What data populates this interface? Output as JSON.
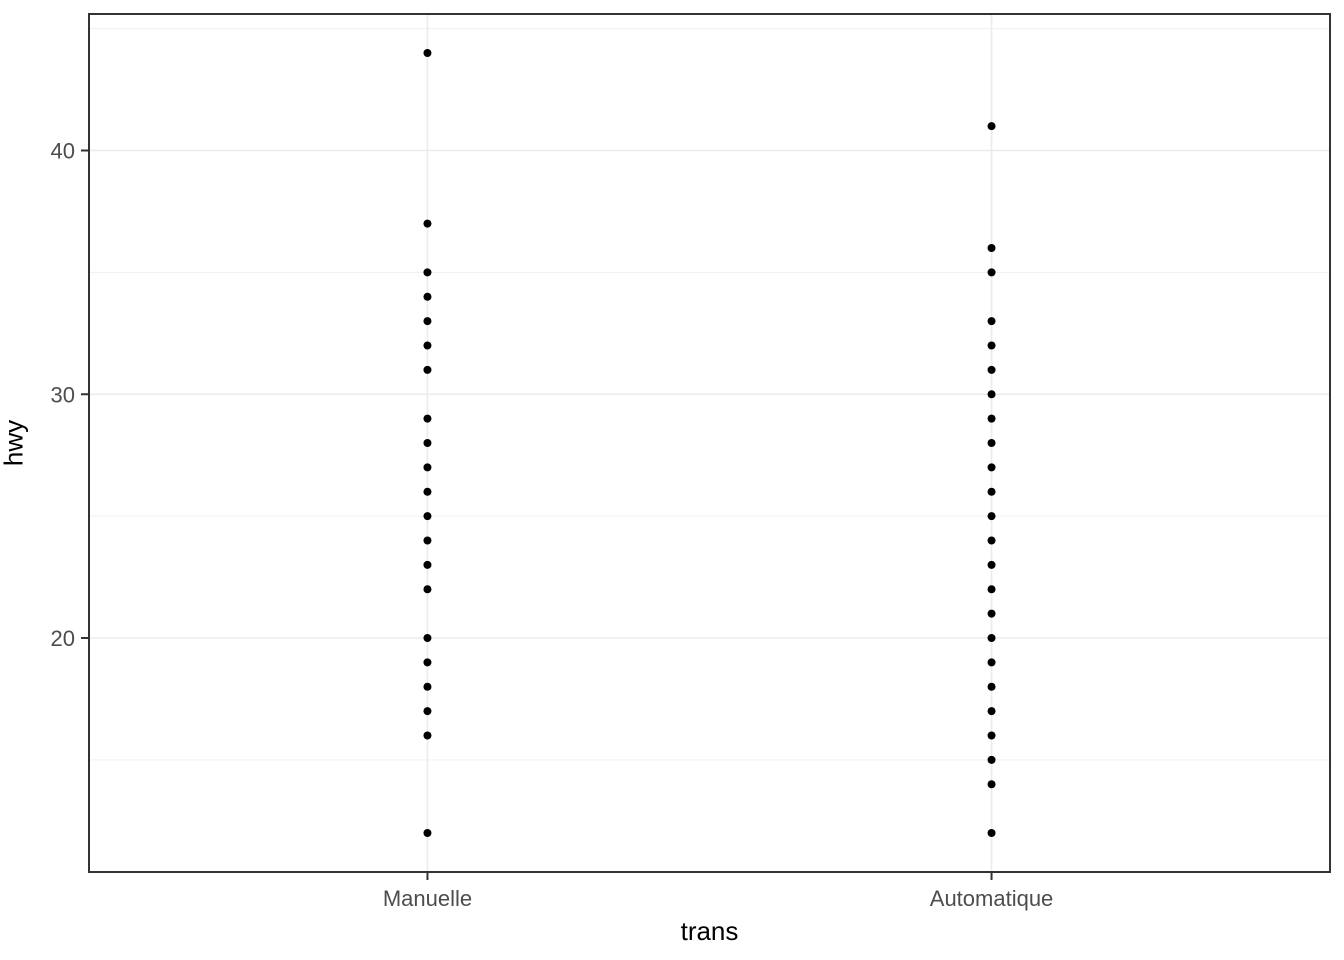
{
  "chart_data": {
    "type": "scatter",
    "subtype": "strip-plot",
    "title": "",
    "xlabel": "trans",
    "ylabel": "hwy",
    "categories": [
      "Manuelle",
      "Automatique"
    ],
    "series": [
      {
        "name": "Manuelle",
        "values": [
          44,
          37,
          35,
          34,
          33,
          32,
          31,
          29,
          28,
          27,
          26,
          25,
          24,
          23,
          22,
          20,
          19,
          18,
          17,
          16,
          12
        ]
      },
      {
        "name": "Automatique",
        "values": [
          41,
          36,
          35,
          33,
          32,
          31,
          30,
          29,
          28,
          27,
          26,
          25,
          24,
          23,
          22,
          21,
          20,
          19,
          18,
          17,
          16,
          15,
          14,
          12
        ]
      }
    ],
    "ylim": [
      10.4,
      45.6
    ],
    "yticks_major": [
      20,
      30,
      40
    ],
    "yticks_minor": [
      15,
      25,
      35,
      45
    ],
    "ytick_labels": [
      "20",
      "30",
      "40"
    ],
    "grid": true,
    "legend": "none",
    "colors": {
      "point": "#000000",
      "grid_major": "#ebebeb",
      "grid_minor": "#f0f0f0",
      "panel_border": "#333333",
      "tick_mark": "#333333",
      "tick_label": "#4d4d4d",
      "axis_title": "#000000",
      "panel_background": "#ffffff"
    }
  }
}
